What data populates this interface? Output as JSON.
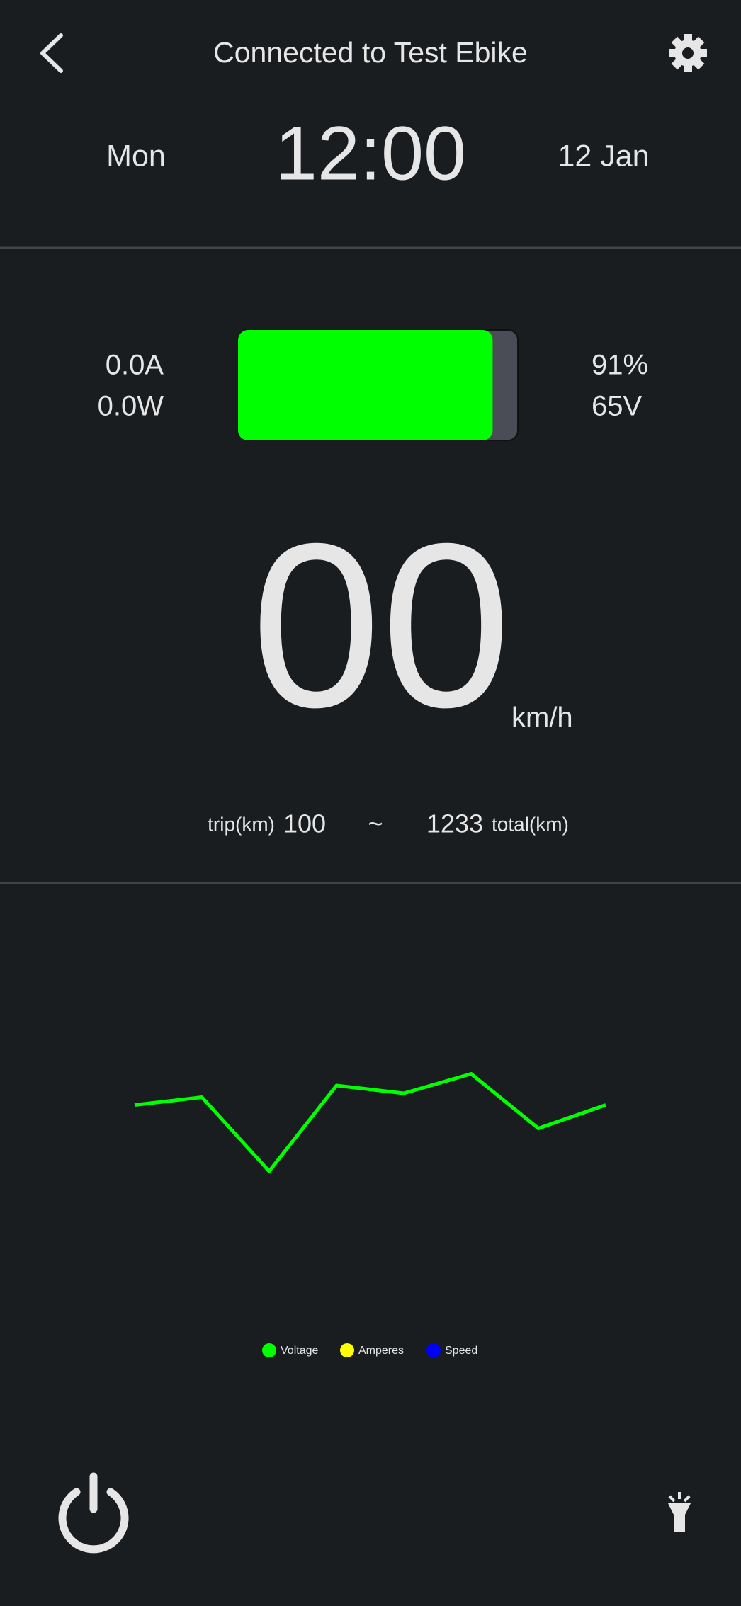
{
  "header": {
    "title": "Connected to Test Ebike"
  },
  "clock": {
    "day": "Mon",
    "time": "12:00",
    "date": "12 Jan"
  },
  "stats": {
    "current": "0.0A",
    "power": "0.0W",
    "battery": "91%",
    "voltage": "65V",
    "battery_level": 91
  },
  "speed": {
    "value": "00",
    "unit": "km/h"
  },
  "trip": {
    "trip_label": "trip(km)",
    "trip_value": "100",
    "separator": "~",
    "total_value": "1233",
    "total_label": "total(km)"
  },
  "chart_data": {
    "type": "line",
    "ylim": [
      0,
      100
    ],
    "series": [
      {
        "name": "Voltage",
        "color": "#00ff00",
        "values": [
          53,
          55,
          36,
          58,
          56,
          61,
          47,
          53
        ]
      },
      {
        "name": "Amperes",
        "color": "#ffff00",
        "values": [
          null,
          null,
          null,
          null,
          null,
          null,
          null,
          null
        ]
      },
      {
        "name": "Speed",
        "color": "#0000ff",
        "values": [
          null,
          null,
          null,
          null,
          null,
          null,
          null,
          null
        ]
      }
    ]
  }
}
